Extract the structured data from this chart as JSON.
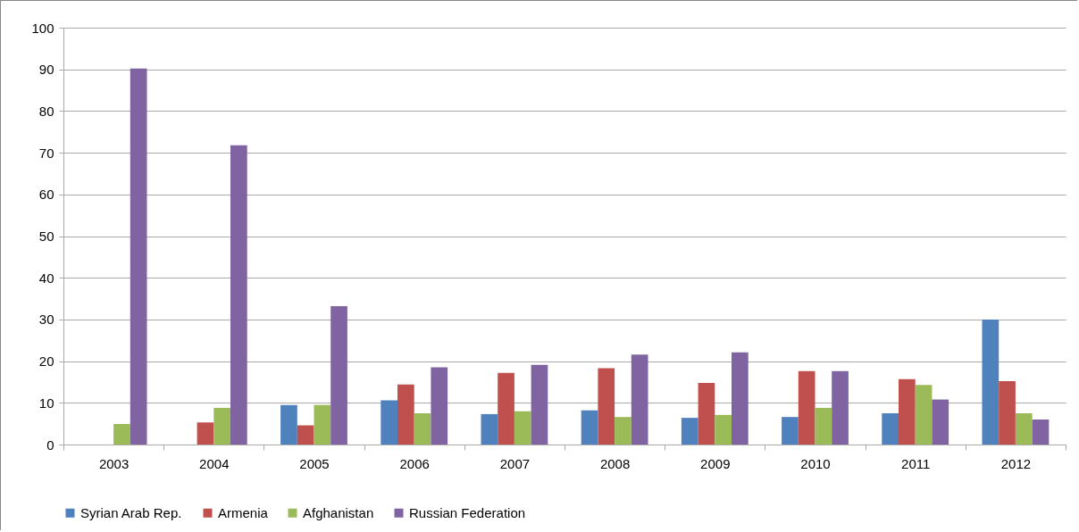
{
  "chart_data": {
    "type": "bar",
    "categories": [
      "2003",
      "2004",
      "2005",
      "2006",
      "2007",
      "2008",
      "2009",
      "2010",
      "2011",
      "2012"
    ],
    "series": [
      {
        "name": "Syrian Arab Rep.",
        "color": "#4f81bd",
        "values": [
          null,
          null,
          9.5,
          10.6,
          7.3,
          8.2,
          6.4,
          6.6,
          7.5,
          30.0
        ]
      },
      {
        "name": "Armenia",
        "color": "#c0504d",
        "values": [
          null,
          5.3,
          4.6,
          14.4,
          17.2,
          18.3,
          14.8,
          17.6,
          15.7,
          15.2
        ]
      },
      {
        "name": "Afghanistan",
        "color": "#9bbb59",
        "values": [
          4.9,
          8.8,
          9.5,
          7.5,
          8.0,
          6.6,
          7.1,
          8.8,
          14.3,
          7.5
        ]
      },
      {
        "name": "Russian Federation",
        "color": "#8064a2",
        "values": [
          90.2,
          71.8,
          33.2,
          18.5,
          19.1,
          21.6,
          22.1,
          17.6,
          10.8,
          6.0
        ]
      }
    ],
    "ylim": [
      0,
      100
    ],
    "yticks": [
      0,
      10,
      20,
      30,
      40,
      50,
      60,
      70,
      80,
      90,
      100
    ],
    "grid": "y",
    "legend": "bottom"
  }
}
